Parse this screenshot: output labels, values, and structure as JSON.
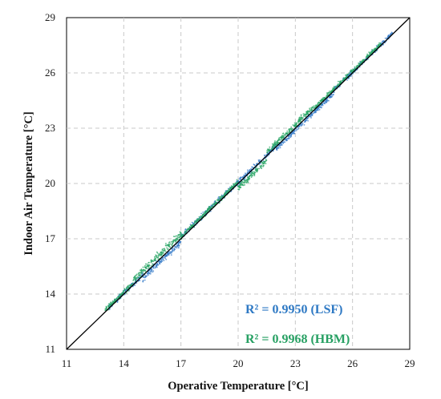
{
  "chart_data": {
    "type": "scatter",
    "xlabel": "Operative Temperature [°C]",
    "ylabel": "Indoor Air Temperature [°C]",
    "xlim": [
      11,
      29
    ],
    "ylim": [
      11,
      29
    ],
    "xticks": [
      "11",
      "14",
      "17",
      "20",
      "23",
      "26",
      "29"
    ],
    "yticks": [
      "11",
      "14",
      "17",
      "20",
      "23",
      "26",
      "29"
    ],
    "grid": true,
    "reference_line": {
      "x": [
        11,
        29
      ],
      "y": [
        11,
        29
      ],
      "color": "#000000"
    },
    "series": [
      {
        "color": "#3a7dc9",
        "x_range": [
          13.2,
          28.1
        ],
        "segments": [
          {
            "x0": 13.2,
            "x1": 15.0,
            "offset": 0.05,
            "spread": 0.14
          },
          {
            "x0": 15.0,
            "x1": 17.0,
            "offset": -0.15,
            "spread": 0.18
          },
          {
            "x0": 17.0,
            "x1": 19.5,
            "offset": 0.1,
            "spread": 0.16
          },
          {
            "x0": 19.5,
            "x1": 22.0,
            "offset": 0.05,
            "spread": 0.14
          },
          {
            "x0": 22.0,
            "x1": 25.0,
            "offset": -0.1,
            "spread": 0.16
          },
          {
            "x0": 25.0,
            "x1": 28.1,
            "offset": 0.05,
            "spread": 0.12
          }
        ]
      },
      {
        "color": "#2aa665",
        "x_range": [
          13.0,
          27.5
        ],
        "segments": [
          {
            "x0": 13.0,
            "x1": 14.5,
            "offset": 0.1,
            "spread": 0.15
          },
          {
            "x0": 14.5,
            "x1": 17.0,
            "offset": 0.25,
            "spread": 0.2
          },
          {
            "x0": 17.0,
            "x1": 20.0,
            "offset": 0.1,
            "spread": 0.14
          },
          {
            "x0": 20.0,
            "x1": 21.5,
            "offset": -0.25,
            "spread": 0.16
          },
          {
            "x0": 21.5,
            "x1": 24.0,
            "offset": 0.2,
            "spread": 0.15
          },
          {
            "x0": 24.0,
            "x1": 27.5,
            "offset": 0.1,
            "spread": 0.12
          }
        ]
      }
    ],
    "annotations": [
      {
        "text": "R² = 0.9950 (LSF)",
        "color": "#2e79c4"
      },
      {
        "text": "R² = 0.9968 (HBM)",
        "color": "#27a063"
      }
    ]
  }
}
